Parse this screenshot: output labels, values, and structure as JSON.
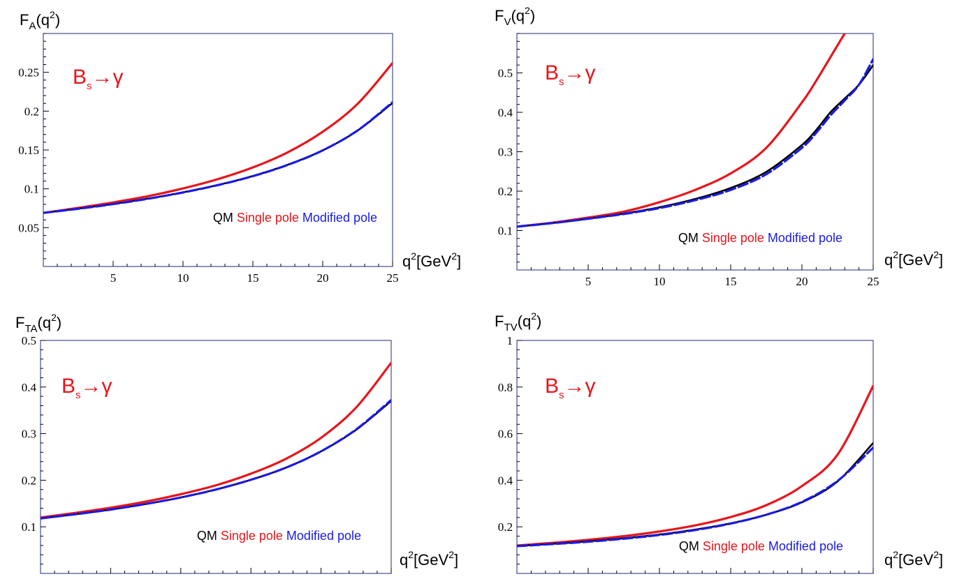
{
  "colors": {
    "qm": "#000000",
    "single_pole": "#e8141b",
    "modified_pole": "#1a1ae6",
    "frame": "#1f2a7a"
  },
  "chart_data": [
    {
      "type": "line",
      "panel": "FA",
      "ylabel": {
        "base": "F",
        "sub": "A",
        "rest": "(q",
        "sup": "2",
        "close": ")"
      },
      "xlabel": {
        "base": "q",
        "sup": "2",
        "unit_pre": "[GeV",
        "unit_sup": "2",
        "unit_close": "]"
      },
      "process": {
        "base": "B",
        "sub": "s",
        "arrow": "→γ"
      },
      "legend": {
        "qm": "QM",
        "single": "Single pole",
        "modified": "Modified pole"
      },
      "xlim": [
        0,
        25
      ],
      "ylim": [
        0.0,
        0.3
      ],
      "xticks": [
        5,
        10,
        15,
        20,
        25
      ],
      "yticks": [
        0.05,
        0.1,
        0.15,
        0.2,
        0.25
      ],
      "ytick_labels": [
        "0.05",
        "0.1",
        "0.15",
        "0.2",
        "0.25"
      ],
      "x": [
        0,
        2.5,
        5,
        7.5,
        10,
        12.5,
        15,
        17.5,
        20,
        22.5,
        25
      ],
      "series": [
        {
          "name": "QM",
          "style": "solid",
          "values": [
            0.069,
            0.0745,
            0.0805,
            0.0875,
            0.0955,
            0.105,
            0.1165,
            0.131,
            0.1495,
            0.175,
            0.2105
          ]
        },
        {
          "name": "Single pole",
          "style": "solid",
          "values": [
            0.069,
            0.0755,
            0.0825,
            0.0905,
            0.1005,
            0.1125,
            0.1275,
            0.147,
            0.1735,
            0.2095,
            0.262
          ]
        },
        {
          "name": "Modified pole",
          "style": "dashed",
          "values": [
            0.069,
            0.0743,
            0.0803,
            0.0872,
            0.0953,
            0.1048,
            0.1163,
            0.1308,
            0.1495,
            0.1752,
            0.2115
          ]
        }
      ]
    },
    {
      "type": "line",
      "panel": "FV",
      "ylabel": {
        "base": "F",
        "sub": "V",
        "rest": "(q",
        "sup": "2",
        "close": ")"
      },
      "xlabel": {
        "base": "q",
        "sup": "2",
        "unit_pre": "[GeV",
        "unit_sup": "2",
        "unit_close": "]"
      },
      "process": {
        "base": "B",
        "sub": "s",
        "arrow": "→γ"
      },
      "legend": {
        "qm": "QM",
        "single": "Single pole",
        "modified": "Modified pole"
      },
      "xlim": [
        0,
        25
      ],
      "ylim": [
        0.0,
        0.6
      ],
      "xticks": [
        5,
        10,
        15,
        20,
        25
      ],
      "yticks": [
        0.1,
        0.2,
        0.3,
        0.4,
        0.5
      ],
      "ytick_labels": [
        "0.1",
        "0.2",
        "0.3",
        "0.4",
        "0.5"
      ],
      "x": [
        0,
        2.5,
        5,
        7.5,
        10,
        12.5,
        15,
        17.5,
        20,
        21,
        22,
        23,
        24,
        25
      ],
      "series": [
        {
          "name": "QM",
          "style": "solid",
          "values": [
            0.11,
            0.119,
            0.13,
            0.143,
            0.159,
            0.18,
            0.208,
            0.249,
            0.317,
            0.355,
            0.4,
            0.435,
            0.47,
            0.52
          ]
        },
        {
          "name": "Single pole",
          "style": "solid",
          "values": [
            0.11,
            0.12,
            0.133,
            0.148,
            0.172,
            0.203,
            0.245,
            0.31,
            0.425,
            0.48,
            0.54,
            0.6,
            null,
            null
          ]
        },
        {
          "name": "Modified pole",
          "style": "dashed",
          "values": [
            0.11,
            0.119,
            0.13,
            0.142,
            0.157,
            0.177,
            0.203,
            0.243,
            0.31,
            0.348,
            0.392,
            0.43,
            0.47,
            0.535
          ]
        }
      ]
    },
    {
      "type": "line",
      "panel": "FTA",
      "ylabel": {
        "base": "F",
        "sub": "TA",
        "rest": "(q",
        "sup": "2",
        "close": ")"
      },
      "xlabel": {
        "base": "q",
        "sup": "2",
        "unit_pre": "[GeV",
        "unit_sup": "2",
        "unit_close": "]"
      },
      "process": {
        "base": "B",
        "sub": "s",
        "arrow": "→γ"
      },
      "legend": {
        "qm": "QM",
        "single": "Single pole",
        "modified": "Modified pole"
      },
      "xlim": [
        0,
        25
      ],
      "ylim": [
        0.0,
        0.5
      ],
      "xticks": [
        5,
        10,
        15,
        20,
        25
      ],
      "yticks": [
        0.1,
        0.2,
        0.3,
        0.4,
        0.5
      ],
      "ytick_labels": [
        "0.1",
        "0.2",
        "0.3",
        "0.4",
        "0.5"
      ],
      "x": [
        0,
        2.5,
        5,
        7.5,
        10,
        12.5,
        15,
        17.5,
        20,
        22.5,
        25
      ],
      "series": [
        {
          "name": "QM",
          "style": "solid",
          "values": [
            0.118,
            0.127,
            0.137,
            0.149,
            0.163,
            0.18,
            0.201,
            0.227,
            0.262,
            0.308,
            0.37
          ]
        },
        {
          "name": "Single pole",
          "style": "solid",
          "values": [
            0.12,
            0.13,
            0.141,
            0.154,
            0.17,
            0.189,
            0.214,
            0.246,
            0.291,
            0.356,
            0.452
          ]
        },
        {
          "name": "Modified pole",
          "style": "dashed",
          "values": [
            0.118,
            0.127,
            0.137,
            0.149,
            0.163,
            0.18,
            0.201,
            0.227,
            0.262,
            0.309,
            0.372
          ]
        }
      ]
    },
    {
      "type": "line",
      "panel": "FTV",
      "ylabel": {
        "base": "F",
        "sub": "TV",
        "rest": "(q",
        "sup": "2",
        "close": ")"
      },
      "xlabel": {
        "base": "q",
        "sup": "2",
        "unit_pre": "[GeV",
        "unit_sup": "2",
        "unit_close": "]"
      },
      "process": {
        "base": "B",
        "sub": "s",
        "arrow": "→γ"
      },
      "legend": {
        "qm": "QM",
        "single": "Single pole",
        "modified": "Modified pole"
      },
      "xlim": [
        0,
        25
      ],
      "ylim": [
        0.0,
        1.0
      ],
      "xticks": [
        5,
        10,
        15,
        20,
        25
      ],
      "yticks": [
        0.2,
        0.4,
        0.6,
        0.8,
        1.0
      ],
      "ytick_labels": [
        "0.2",
        "0.4",
        "0.6",
        "0.8",
        "1"
      ],
      "x": [
        0,
        2.5,
        5,
        7.5,
        10,
        12.5,
        15,
        17.5,
        20,
        22.5,
        25
      ],
      "series": [
        {
          "name": "QM",
          "style": "solid",
          "values": [
            0.118,
            0.127,
            0.138,
            0.151,
            0.167,
            0.188,
            0.215,
            0.252,
            0.305,
            0.395,
            0.56
          ]
        },
        {
          "name": "Single pole",
          "style": "solid",
          "values": [
            0.12,
            0.131,
            0.144,
            0.16,
            0.18,
            0.206,
            0.242,
            0.293,
            0.375,
            0.51,
            0.805
          ]
        },
        {
          "name": "Modified pole",
          "style": "dashed",
          "values": [
            0.117,
            0.126,
            0.136,
            0.149,
            0.165,
            0.186,
            0.214,
            0.252,
            0.307,
            0.397,
            0.54
          ]
        }
      ]
    }
  ]
}
